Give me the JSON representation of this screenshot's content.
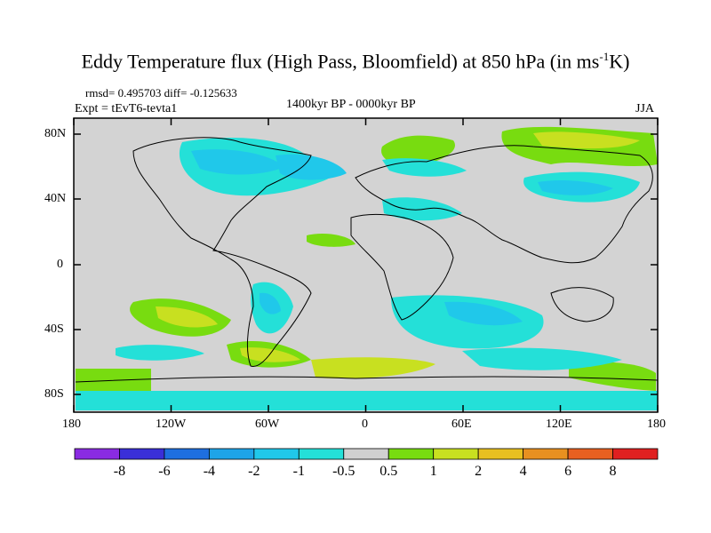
{
  "figure": {
    "title_main": "Eddy Temperature flux (High Pass, Bloomfield) at 850 hPa (in ms",
    "title_sup": "-1",
    "title_end": "K)",
    "stats": "rmsd= 0.495703 diff= -0.125633",
    "period": "1400kyr BP - 0000kyr BP",
    "experiment": "Expt = tEvT6-tevta1",
    "season": "JJA"
  },
  "axes": {
    "lat_ticks": [
      "80N",
      "40N",
      "0",
      "40S",
      "80S"
    ],
    "lon_ticks": [
      "180",
      "120W",
      "60W",
      "0",
      "60E",
      "120E",
      "180"
    ]
  },
  "colorbar": {
    "labels": [
      "-8",
      "-6",
      "-4",
      "-2",
      "-1",
      "-0.5",
      "0.5",
      "1",
      "2",
      "4",
      "6",
      "8"
    ],
    "colors": [
      "#8a2be2",
      "#3a2fd8",
      "#1e6fe0",
      "#1ea4e8",
      "#20c8ea",
      "#24e0d8",
      "#d0d0d0",
      "#78dc10",
      "#c8e020",
      "#e8c020",
      "#e89020",
      "#e86020",
      "#e02020"
    ]
  },
  "colors": {
    "land_background": "#d3d3d3",
    "coast": "#000000"
  }
}
